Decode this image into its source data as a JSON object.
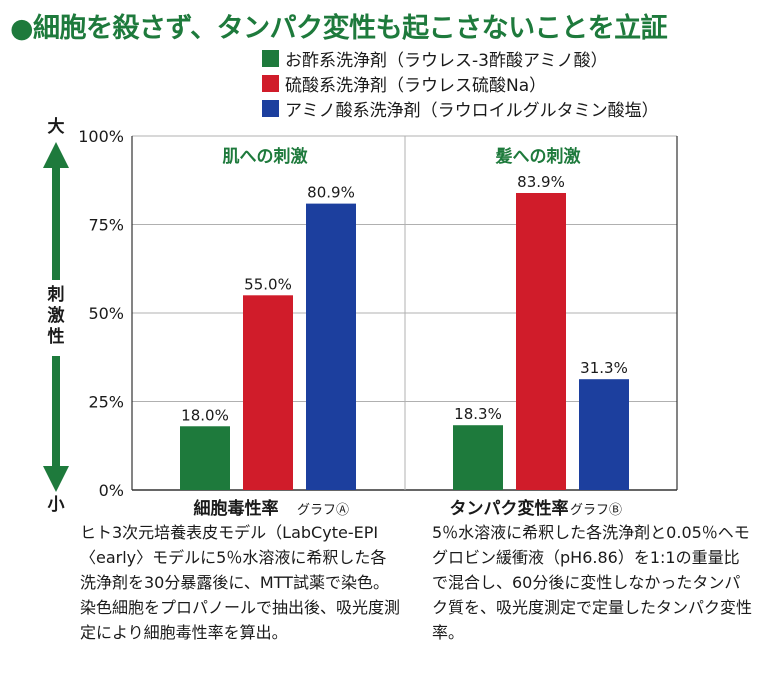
{
  "title": "●細胞を殺さず、タンパク変性も起こさないことを立証",
  "legend": [
    {
      "label": "お酢系洗浄剤（ラウレス-3酢酸アミノ酸）",
      "color": "#1e7a3c"
    },
    {
      "label": "硫酸系洗浄剤（ラウレス硫酸Na）",
      "color": "#d01c2a"
    },
    {
      "label": "アミノ酸系洗浄剤（ラウロイルグルタミン酸塩）",
      "color": "#1c3f9e"
    }
  ],
  "axis": {
    "top_label": "大",
    "middle_label": "刺激性",
    "bottom_label": "小"
  },
  "descriptions": {
    "a": "ヒト3次元培養表皮モデル（LabCyte-EPI〈early〉モデルに5％水溶液に希釈した各洗浄剤を30分暴露後に、MTT試薬で染色。染色細胞をプロパノールで抽出後、吸光度測定により細胞毒性率を算出。",
    "b": "5％水溶液に希釈した各洗浄剤と0.05％ヘモグロビン緩衝液（pH6.86）を1:1の重量比で混合し、60分後に変性しなかったタンパク質を、吸光度測定で定量したタンパク変性率。"
  },
  "chart_data": {
    "type": "bar",
    "ylabel": "刺激性",
    "ylim": [
      0,
      100
    ],
    "yticks": [
      0,
      25,
      50,
      75,
      100
    ],
    "ytick_labels": [
      "0%",
      "25%",
      "50%",
      "75%",
      "100%"
    ],
    "grid": true,
    "categories": [
      "細胞毒性率",
      "タンパク変性率"
    ],
    "group_annotations": [
      "肌への刺激",
      "髪への刺激"
    ],
    "group_tags": [
      "グラフⒶ",
      "グラフⒷ"
    ],
    "series": [
      {
        "name": "お酢系洗浄剤（ラウレス-3酢酸アミノ酸）",
        "color": "#1e7a3c",
        "values": [
          18.0,
          18.3
        ],
        "labels": [
          "18.0%",
          "18.3%"
        ]
      },
      {
        "name": "硫酸系洗浄剤（ラウレス硫酸Na）",
        "color": "#d01c2a",
        "values": [
          55.0,
          83.9
        ],
        "labels": [
          "55.0%",
          "83.9%"
        ]
      },
      {
        "name": "アミノ酸系洗浄剤（ラウロイルグルタミン酸塩）",
        "color": "#1c3f9e",
        "values": [
          80.9,
          31.3
        ],
        "labels": [
          "80.9%",
          "31.3%"
        ]
      }
    ],
    "annotation_color": "#1e7a3c"
  }
}
